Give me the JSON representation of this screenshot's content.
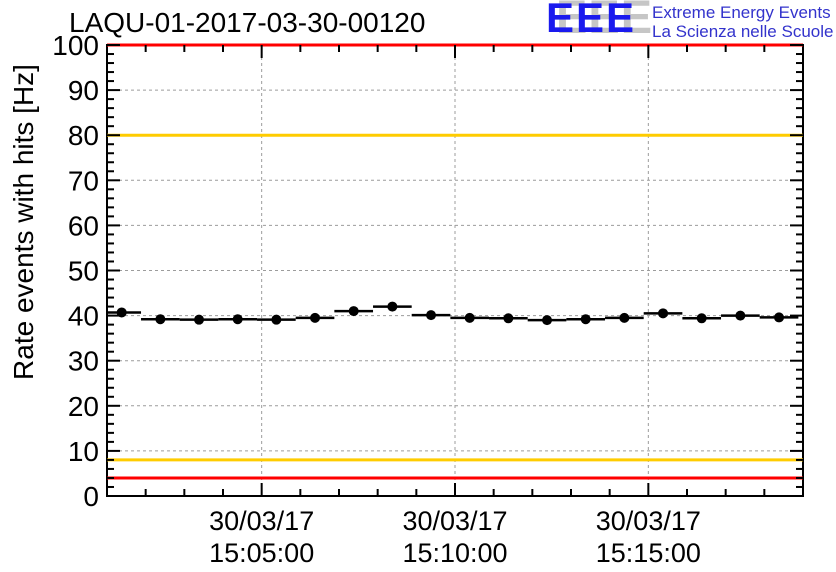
{
  "header": {
    "title": "LAQU-01-2017-03-30-00120",
    "logo": {
      "acronym": "EEE",
      "line1": "Extreme Energy Events",
      "line2": "La Scienza nelle Scuole",
      "acronym_color": "#1a1aee",
      "text_color": "#3333cc",
      "shadow_color": "#c6c6c6"
    }
  },
  "chart_data": {
    "type": "scatter",
    "title": "LAQU-01-2017-03-30-00120",
    "xlabel": "",
    "ylabel": "Rate events with hits [Hz]",
    "ylim": [
      0,
      100
    ],
    "grid": "dashed-gray-at-major-ticks",
    "legend": "none",
    "marker": "filled-circle-with-horizontal-error-bars",
    "colors": {
      "data": "#000000",
      "alarm_line": "#ff0000",
      "warning_line": "#ffcc00",
      "grid_line": "#9c9c9c"
    },
    "y_axis": {
      "major_ticks": [
        0,
        10,
        20,
        30,
        40,
        50,
        60,
        70,
        80,
        90,
        100
      ],
      "minor_tick_step": 2
    },
    "x_axis": {
      "unit": "minutes after 15:00 on 30/03/17",
      "lim_minutes": [
        1,
        19
      ],
      "start_time": "15:01:00",
      "end_time": "15:19:00",
      "minor_tick_step_minutes": 1,
      "major_ticks": [
        {
          "minute": 5,
          "date": "30/03/17",
          "time": "15:05:00"
        },
        {
          "minute": 10,
          "date": "30/03/17",
          "time": "15:10:00"
        },
        {
          "minute": 15,
          "date": "30/03/17",
          "time": "15:15:00"
        }
      ]
    },
    "threshold_lines": [
      {
        "hz": 100,
        "color": "#ff0000",
        "kind": "alarm-high"
      },
      {
        "hz": 80,
        "color": "#ffcc00",
        "kind": "warning-high"
      },
      {
        "hz": 8,
        "color": "#ffcc00",
        "kind": "warning-low"
      },
      {
        "hz": 4,
        "color": "#ff0000",
        "kind": "alarm-low"
      }
    ],
    "series": [
      {
        "name": "rate-events-with-hits",
        "bin_width_minutes": 1,
        "points": [
          {
            "m": 1.38,
            "t": "15:01:23",
            "hz": 40.7
          },
          {
            "m": 2.38,
            "t": "15:02:23",
            "hz": 39.2
          },
          {
            "m": 3.38,
            "t": "15:03:23",
            "hz": 39.1
          },
          {
            "m": 4.38,
            "t": "15:04:23",
            "hz": 39.2
          },
          {
            "m": 5.38,
            "t": "15:05:23",
            "hz": 39.1
          },
          {
            "m": 6.38,
            "t": "15:06:23",
            "hz": 39.5
          },
          {
            "m": 7.38,
            "t": "15:07:23",
            "hz": 41.0
          },
          {
            "m": 8.38,
            "t": "15:08:23",
            "hz": 42.0
          },
          {
            "m": 9.38,
            "t": "15:09:23",
            "hz": 40.1
          },
          {
            "m": 10.38,
            "t": "15:10:23",
            "hz": 39.5
          },
          {
            "m": 11.38,
            "t": "15:11:23",
            "hz": 39.4
          },
          {
            "m": 12.38,
            "t": "15:12:23",
            "hz": 39.0
          },
          {
            "m": 13.38,
            "t": "15:13:23",
            "hz": 39.2
          },
          {
            "m": 14.38,
            "t": "15:14:23",
            "hz": 39.5
          },
          {
            "m": 15.38,
            "t": "15:15:23",
            "hz": 40.5
          },
          {
            "m": 16.38,
            "t": "15:16:23",
            "hz": 39.4
          },
          {
            "m": 17.38,
            "t": "15:17:23",
            "hz": 40.0
          },
          {
            "m": 18.38,
            "t": "15:18:23",
            "hz": 39.6
          }
        ]
      }
    ]
  }
}
